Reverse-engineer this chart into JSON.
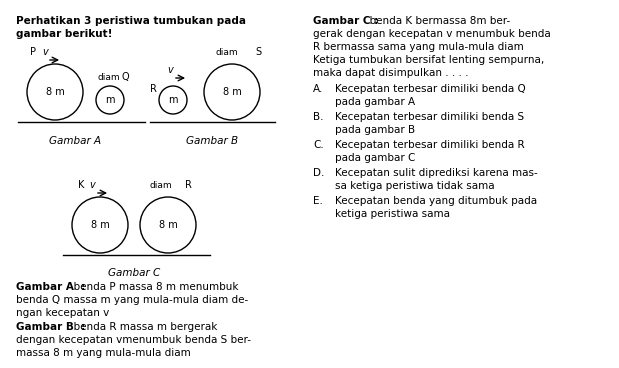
{
  "bg_color": "#ffffff",
  "title_line1": "Perhatikan 3 peristiwa tumbukan pada",
  "title_line2": "gambar berikut!",
  "gambar_a_label": "Gambar A",
  "gambar_b_label": "Gambar B",
  "gambar_c_label": "Gambar C",
  "desc_a_bold": "Gambar A  :",
  "desc_a_rest1": "  benda P massa 8 m menumbuk",
  "desc_a_rest2": "benda Q massa m yang mula-mula diam de-",
  "desc_a_rest3": "ngan kecepatan v",
  "desc_b_bold": "Gambar B  :",
  "desc_b_rest1": "  benda R massa m bergerak",
  "desc_b_rest2": "dengan kecepatan vmenumbuk benda S ber-",
  "desc_b_rest3": "massa 8 m yang mula-mula diam",
  "right_bold": "Gambar C :",
  "right_rest1": "  benda K bermassa 8m ber-",
  "right_line2": "gerak dengan kecepatan v menumbuk benda",
  "right_line3": "R bermassa sama yang mula-mula diam",
  "right_line4": "Ketiga tumbukan bersifat lenting sempurna,",
  "right_line5": "maka dapat disimpulkan . . . .",
  "options": [
    [
      "A.",
      "Kecepatan terbesar dimiliki benda Q",
      "pada gambar A"
    ],
    [
      "B.",
      "Kecepatan terbesar dimiliki benda S",
      "pada gambar B"
    ],
    [
      "C.",
      "Kecepatan terbesar dimiliki benda R",
      "pada gambar C"
    ],
    [
      "D.",
      "Kecepatan sulit diprediksi karena mas-",
      "sa ketiga peristiwa tidak sama"
    ],
    [
      "E.",
      "Kecepatan benda yang ditumbuk pada",
      "ketiga peristiwa sama"
    ]
  ]
}
